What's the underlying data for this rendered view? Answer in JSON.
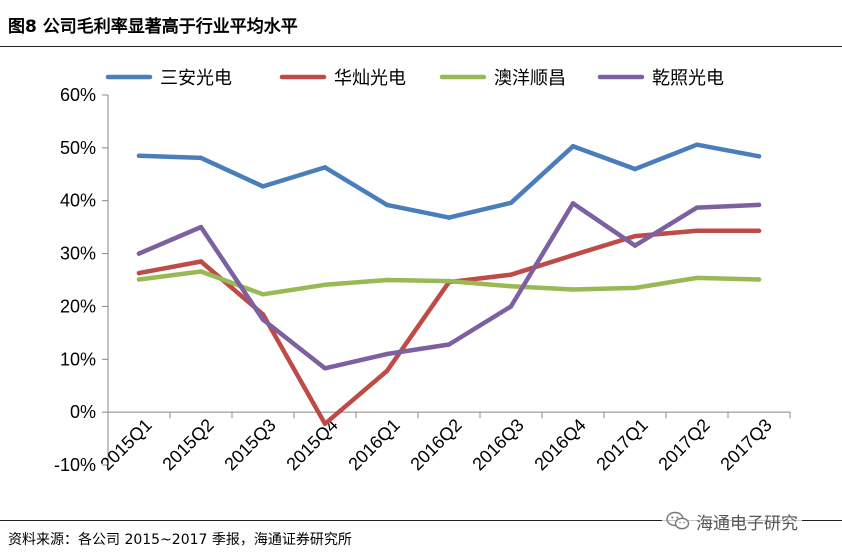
{
  "figure": {
    "title": "图8  公司毛利率显著高于行业平均水平",
    "source": "资料来源：各公司 2015~2017 季报，海通证券研究所",
    "watermark": "海通电子研究"
  },
  "chart_data": {
    "type": "line",
    "title": "",
    "xlabel": "",
    "ylabel": "",
    "categories": [
      "2015Q1",
      "2015Q2",
      "2015Q3",
      "2015Q4",
      "2016Q1",
      "2016Q2",
      "2016Q3",
      "2016Q4",
      "2017Q1",
      "2017Q2",
      "2017Q3"
    ],
    "ylim": [
      -10,
      60
    ],
    "yticks": [
      -10,
      0,
      10,
      20,
      30,
      40,
      50,
      60
    ],
    "ytick_labels": [
      "-10%",
      "0%",
      "10%",
      "20%",
      "30%",
      "40%",
      "50%",
      "60%"
    ],
    "grid": false,
    "legend_position": "top",
    "series": [
      {
        "name": "三安光电",
        "color": "#4a7ebb",
        "values": [
          48.5,
          48.1,
          42.7,
          46.3,
          39.2,
          36.8,
          39.6,
          50.3,
          46.0,
          50.6,
          48.4
        ]
      },
      {
        "name": "华灿光电",
        "color": "#be4b48",
        "values": [
          26.3,
          28.5,
          18.5,
          -2.2,
          7.8,
          24.6,
          26.0,
          29.7,
          33.3,
          34.3,
          34.3
        ]
      },
      {
        "name": "澳洋顺昌",
        "color": "#98b954",
        "values": [
          25.1,
          26.6,
          22.3,
          24.1,
          25.0,
          24.8,
          23.8,
          23.2,
          23.5,
          25.4,
          25.1
        ]
      },
      {
        "name": "乾照光电",
        "color": "#7d60a0",
        "values": [
          30.0,
          35.0,
          17.5,
          8.3,
          11.0,
          12.8,
          20.0,
          39.5,
          31.5,
          38.7,
          39.2
        ]
      }
    ]
  }
}
